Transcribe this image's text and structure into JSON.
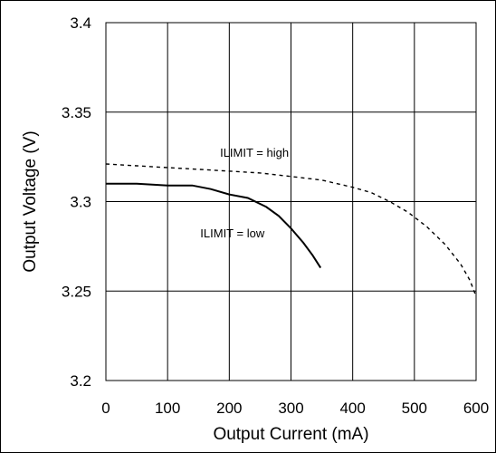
{
  "chart_data": {
    "type": "line",
    "xlabel": "Output Current (mA)",
    "ylabel": "Output Voltage (V)",
    "xlim": [
      0,
      600
    ],
    "ylim": [
      3.2,
      3.4
    ],
    "x_ticks": [
      "0",
      "100",
      "200",
      "300",
      "400",
      "500",
      "600"
    ],
    "y_ticks": [
      "3.2",
      "3.25",
      "3.3",
      "3.35",
      "3.4"
    ],
    "grid": true,
    "series": [
      {
        "name": "ILIMIT = low",
        "line_style": "solid",
        "color": "#000000",
        "points": [
          [
            0,
            3.31
          ],
          [
            50,
            3.31
          ],
          [
            100,
            3.309
          ],
          [
            140,
            3.309
          ],
          [
            170,
            3.307
          ],
          [
            200,
            3.304
          ],
          [
            230,
            3.302
          ],
          [
            260,
            3.297
          ],
          [
            280,
            3.292
          ],
          [
            300,
            3.285
          ],
          [
            320,
            3.277
          ],
          [
            335,
            3.27
          ],
          [
            348,
            3.263
          ]
        ]
      },
      {
        "name": "ILIMIT = high",
        "line_style": "dashed",
        "color": "#000000",
        "points": [
          [
            0,
            3.321
          ],
          [
            50,
            3.32
          ],
          [
            100,
            3.319
          ],
          [
            150,
            3.318
          ],
          [
            200,
            3.317
          ],
          [
            250,
            3.316
          ],
          [
            300,
            3.314
          ],
          [
            350,
            3.312
          ],
          [
            400,
            3.308
          ],
          [
            430,
            3.305
          ],
          [
            460,
            3.3
          ],
          [
            490,
            3.294
          ],
          [
            520,
            3.286
          ],
          [
            550,
            3.276
          ],
          [
            575,
            3.265
          ],
          [
            590,
            3.256
          ],
          [
            600,
            3.247
          ]
        ]
      }
    ],
    "annotations": [
      {
        "text": "ILIMIT = high",
        "x": 185,
        "y": 3.325
      },
      {
        "text": "ILIMIT = low",
        "x": 153,
        "y": 3.28
      }
    ]
  }
}
